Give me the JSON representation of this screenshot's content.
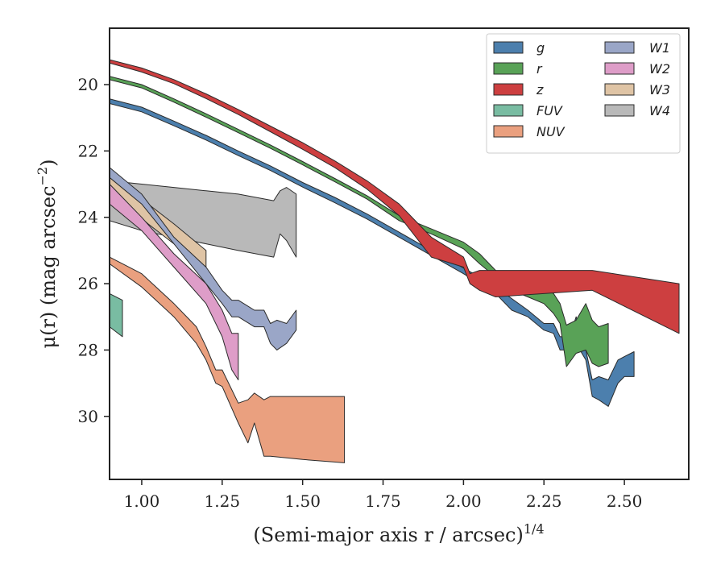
{
  "chart_data": {
    "type": "area",
    "xlabel": "(Semi-major axis r / arcsec)",
    "xlabel_exponent": "1/4",
    "ylabel": "μ(r) (mag arcsec",
    "ylabel_exponent": "−2",
    "ylabel_close": ")",
    "xlim": [
      0.9,
      2.7
    ],
    "ylim": [
      31.9,
      18.3
    ],
    "y_inverted": true,
    "x_ticks": [
      1.0,
      1.25,
      1.5,
      1.75,
      2.0,
      2.25,
      2.5
    ],
    "x_tick_labels": [
      "1.00",
      "1.25",
      "1.50",
      "1.75",
      "2.00",
      "2.25",
      "2.50"
    ],
    "y_ticks": [
      20,
      22,
      24,
      26,
      28,
      30
    ],
    "y_tick_labels": [
      "20",
      "22",
      "24",
      "26",
      "28",
      "30"
    ],
    "grid": false,
    "legend": {
      "placement": "top-right",
      "columns": 2
    },
    "series": [
      {
        "name": "g",
        "color": "#4c7fad",
        "x": [
          0.9,
          1.0,
          1.1,
          1.2,
          1.3,
          1.4,
          1.5,
          1.6,
          1.7,
          1.8,
          1.9,
          2.0,
          2.05,
          2.1,
          2.15,
          2.2,
          2.25,
          2.28,
          2.3,
          2.33,
          2.35,
          2.38,
          2.4,
          2.42,
          2.45,
          2.48,
          2.5,
          2.53
        ],
        "low": [
          20.43,
          20.68,
          21.1,
          21.53,
          22.0,
          22.45,
          22.95,
          23.4,
          23.9,
          24.45,
          25.0,
          25.53,
          25.8,
          26.1,
          26.45,
          26.8,
          27.2,
          27.2,
          27.6,
          27.6,
          27.0,
          28.0,
          28.9,
          28.8,
          28.9,
          28.3,
          28.2,
          28.05
        ],
        "high": [
          20.57,
          20.82,
          21.24,
          21.67,
          22.14,
          22.59,
          23.09,
          23.56,
          24.05,
          24.6,
          25.15,
          25.7,
          26.0,
          26.3,
          26.8,
          27.0,
          27.4,
          27.5,
          28.0,
          28.0,
          27.8,
          28.3,
          29.4,
          29.5,
          29.7,
          29.0,
          28.8,
          28.8
        ]
      },
      {
        "name": "r",
        "color": "#59a257",
        "x": [
          0.9,
          1.0,
          1.1,
          1.2,
          1.3,
          1.4,
          1.5,
          1.6,
          1.7,
          1.8,
          1.9,
          2.0,
          2.05,
          2.1,
          2.15,
          2.2,
          2.25,
          2.28,
          2.3,
          2.32,
          2.35,
          2.38,
          2.4,
          2.42,
          2.45
        ],
        "low": [
          19.75,
          20.0,
          20.43,
          20.88,
          21.35,
          21.82,
          22.32,
          22.83,
          23.35,
          23.95,
          24.35,
          24.75,
          25.1,
          25.6,
          26.0,
          26.1,
          26.1,
          26.3,
          26.6,
          27.25,
          27.1,
          26.6,
          27.1,
          27.3,
          27.2
        ],
        "high": [
          19.85,
          20.1,
          20.53,
          20.98,
          21.45,
          21.92,
          22.42,
          22.93,
          23.45,
          24.1,
          24.5,
          24.95,
          25.4,
          25.8,
          26.2,
          26.4,
          26.6,
          26.9,
          27.2,
          28.5,
          28.1,
          28.0,
          28.4,
          28.5,
          28.4
        ]
      },
      {
        "name": "z",
        "color": "#cd3f40",
        "x": [
          0.9,
          1.0,
          1.1,
          1.2,
          1.3,
          1.4,
          1.5,
          1.6,
          1.7,
          1.8,
          1.9,
          2.0,
          2.02,
          2.05,
          2.1,
          2.4,
          2.67
        ],
        "low": [
          19.25,
          19.5,
          19.85,
          20.28,
          20.75,
          21.25,
          21.75,
          22.3,
          22.9,
          23.6,
          24.6,
          25.2,
          25.7,
          25.6,
          25.6,
          25.6,
          26.0
        ],
        "high": [
          19.35,
          19.62,
          19.97,
          20.42,
          20.9,
          21.42,
          21.95,
          22.5,
          23.15,
          23.95,
          25.2,
          25.5,
          26.0,
          26.2,
          26.4,
          26.2,
          27.5
        ]
      },
      {
        "name": "FUV",
        "color": "#79bca2",
        "x": [
          0.9,
          0.94
        ],
        "low": [
          26.3,
          26.5
        ],
        "high": [
          27.3,
          27.6
        ]
      },
      {
        "name": "NUV",
        "color": "#eaa07f",
        "x": [
          0.9,
          1.0,
          1.1,
          1.17,
          1.2,
          1.23,
          1.25,
          1.3,
          1.33,
          1.35,
          1.38,
          1.4,
          1.5,
          1.63
        ],
        "low": [
          25.2,
          25.7,
          26.6,
          27.3,
          27.9,
          28.6,
          28.6,
          29.6,
          29.5,
          29.3,
          29.5,
          29.4,
          29.4,
          29.4
        ],
        "high": [
          25.4,
          26.1,
          27.0,
          27.8,
          28.3,
          29.0,
          29.1,
          30.2,
          30.8,
          30.2,
          31.2,
          31.2,
          31.3,
          31.4
        ]
      },
      {
        "name": "W1",
        "color": "#9aa6c7",
        "x": [
          0.9,
          1.0,
          1.1,
          1.2,
          1.25,
          1.28,
          1.3,
          1.35,
          1.38,
          1.4,
          1.42,
          1.45,
          1.48
        ],
        "low": [
          22.5,
          23.3,
          24.6,
          25.5,
          26.2,
          26.5,
          26.5,
          26.8,
          26.8,
          27.2,
          27.1,
          27.2,
          26.8
        ],
        "high": [
          22.8,
          23.6,
          24.8,
          26.0,
          26.6,
          27.0,
          27.0,
          27.3,
          27.3,
          27.8,
          28.0,
          27.8,
          27.4
        ]
      },
      {
        "name": "W2",
        "color": "#de9dc8",
        "x": [
          0.9,
          1.0,
          1.1,
          1.2,
          1.25,
          1.28,
          1.3
        ],
        "low": [
          23.0,
          24.0,
          25.1,
          26.0,
          26.8,
          27.5,
          27.5
        ],
        "high": [
          23.6,
          24.4,
          25.5,
          26.6,
          27.6,
          28.6,
          28.9
        ]
      },
      {
        "name": "W3",
        "color": "#dfc4a5",
        "x": [
          0.9,
          0.96,
          1.02,
          1.1,
          1.2
        ],
        "low": [
          22.8,
          23.2,
          23.6,
          24.2,
          25.0
        ],
        "high": [
          23.2,
          23.7,
          24.2,
          24.8,
          25.6
        ]
      },
      {
        "name": "W4",
        "color": "#b9b9b9",
        "x": [
          0.9,
          1.0,
          1.1,
          1.2,
          1.3,
          1.41,
          1.43,
          1.45,
          1.48
        ],
        "low": [
          22.9,
          23.0,
          23.1,
          23.2,
          23.3,
          23.5,
          23.2,
          23.1,
          23.3
        ],
        "high": [
          24.1,
          24.4,
          24.6,
          24.8,
          25.0,
          25.2,
          24.5,
          24.7,
          25.2
        ]
      }
    ]
  }
}
